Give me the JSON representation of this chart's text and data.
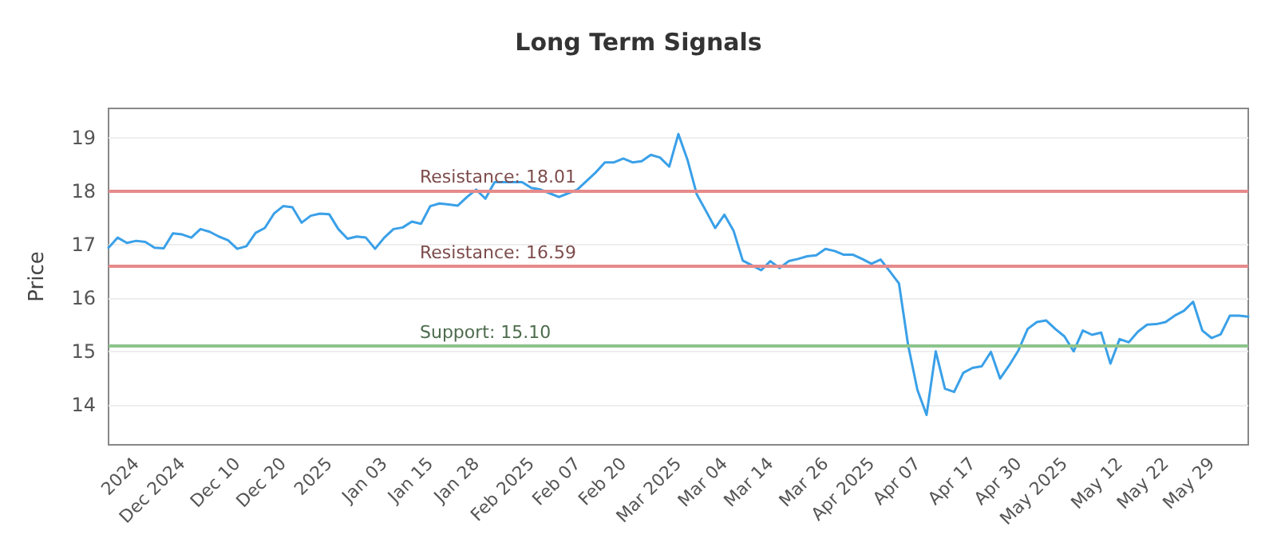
{
  "chart_data": {
    "type": "line",
    "title": "Long Term Signals",
    "ylabel": "Price",
    "categories": [
      null,
      null,
      null,
      "2024",
      null,
      null,
      null,
      null,
      "Dec 2024",
      null,
      null,
      null,
      null,
      null,
      "Dec 10",
      null,
      null,
      null,
      null,
      "Dec 20",
      null,
      null,
      null,
      null,
      "2025",
      null,
      null,
      null,
      null,
      null,
      "Jan 03",
      null,
      null,
      null,
      null,
      "Jan 15",
      null,
      null,
      null,
      null,
      "Jan 28",
      null,
      null,
      null,
      null,
      null,
      "Feb 2025",
      null,
      null,
      null,
      null,
      "Feb 07",
      null,
      null,
      null,
      null,
      "Feb 20",
      null,
      null,
      null,
      null,
      null,
      "Mar 2025",
      null,
      null,
      null,
      null,
      "Mar 04",
      null,
      null,
      null,
      null,
      "Mar 14",
      null,
      null,
      null,
      null,
      null,
      "Mar 26",
      null,
      null,
      null,
      null,
      "Apr 2025",
      null,
      null,
      null,
      null,
      "Apr 07",
      null,
      null,
      null,
      null,
      null,
      "Apr 17",
      null,
      null,
      null,
      null,
      "Apr 30",
      null,
      null,
      null,
      null,
      "May 2025",
      null,
      null,
      null,
      null,
      null,
      "May 12",
      null,
      null,
      null,
      null,
      "May 22",
      null,
      null,
      null,
      null,
      "May 29",
      null,
      null,
      null,
      null
    ],
    "series": [
      {
        "color": "#3aa0e8",
        "values": [
          16.94,
          17.13,
          17.03,
          17.07,
          17.05,
          16.94,
          16.93,
          17.21,
          17.19,
          17.13,
          17.29,
          17.24,
          17.15,
          17.08,
          16.92,
          16.97,
          17.22,
          17.31,
          17.58,
          17.72,
          17.7,
          17.41,
          17.54,
          17.58,
          17.57,
          17.29,
          17.11,
          17.15,
          17.13,
          16.92,
          17.13,
          17.29,
          17.32,
          17.43,
          17.39,
          17.72,
          17.77,
          17.75,
          17.73,
          17.89,
          18.03,
          17.86,
          18.17,
          18.17,
          18.17,
          18.17,
          18.06,
          18.03,
          17.96,
          17.89,
          17.96,
          18.03,
          18.19,
          18.35,
          18.54,
          18.54,
          18.61,
          18.54,
          18.56,
          18.68,
          18.63,
          18.46,
          19.07,
          18.58,
          17.94,
          17.63,
          17.31,
          17.56,
          17.26,
          16.7,
          16.61,
          16.52,
          16.69,
          16.56,
          16.69,
          16.73,
          16.78,
          16.8,
          16.92,
          16.88,
          16.81,
          16.81,
          16.73,
          16.64,
          16.72,
          16.5,
          16.27,
          15.11,
          14.28,
          13.81,
          15.0,
          14.3,
          14.24,
          14.6,
          14.69,
          14.72,
          14.99,
          14.49,
          14.74,
          15.02,
          15.42,
          15.55,
          15.58,
          15.42,
          15.28,
          15.0,
          15.39,
          15.31,
          15.35,
          14.77,
          15.23,
          15.17,
          15.37,
          15.5,
          15.51,
          15.55,
          15.67,
          15.76,
          15.93,
          15.39,
          15.25,
          15.32,
          15.67,
          15.67,
          15.65
        ]
      }
    ],
    "ylim": [
      13.25,
      19.55
    ],
    "yticks": [
      14,
      15,
      16,
      17,
      18,
      19
    ],
    "grid": "y",
    "marker": "none",
    "line_style": "solid",
    "ref_lines": [
      {
        "axis": "y",
        "value": 18.01,
        "label": "Resistance: 18.01",
        "color": "#e58a8a"
      },
      {
        "axis": "y",
        "value": 16.59,
        "label": "Resistance: 16.59",
        "color": "#e58a8a"
      },
      {
        "axis": "y",
        "value": 15.1,
        "label": "Support: 15.10",
        "color": "#8cc48c"
      }
    ]
  }
}
